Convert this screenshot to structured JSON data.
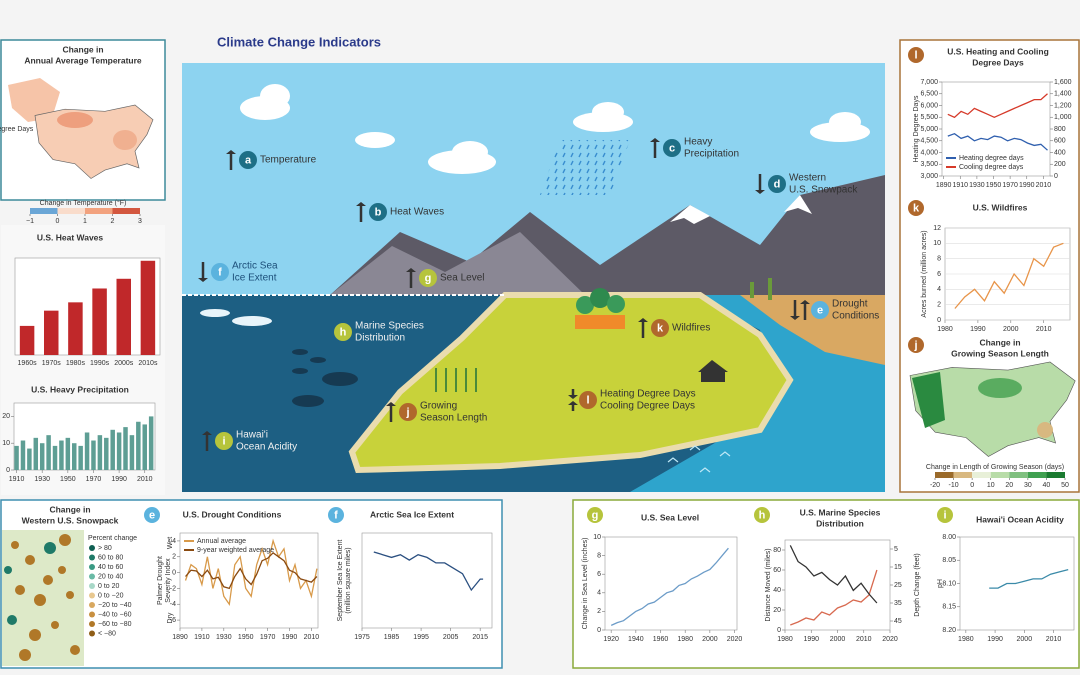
{
  "header": {
    "title": "Climate Change Indicators"
  },
  "indicators": [
    {
      "letter": "a",
      "lines": [
        "Temperature"
      ],
      "trend": "up",
      "color": "#1e6f86"
    },
    {
      "letter": "b",
      "lines": [
        "Heat Waves"
      ],
      "trend": "up",
      "color": "#1e6f86"
    },
    {
      "letter": "c",
      "lines": [
        "Heavy",
        "Precipitation"
      ],
      "trend": "up",
      "color": "#1e6f86"
    },
    {
      "letter": "d",
      "lines": [
        "Western",
        "U.S. Snowpack"
      ],
      "trend": "down",
      "color": "#1e6f86"
    },
    {
      "letter": "e",
      "lines": [
        "Drought",
        "Conditions"
      ],
      "trend": "mixed",
      "color": "#5bb3de"
    },
    {
      "letter": "f",
      "lines": [
        "Arctic Sea",
        "Ice Extent"
      ],
      "trend": "down",
      "color": "#5bb3de"
    },
    {
      "letter": "g",
      "lines": [
        "Sea Level"
      ],
      "trend": "up",
      "color": "#b6c43c"
    },
    {
      "letter": "h",
      "lines": [
        "Marine Species",
        "Distribution"
      ],
      "color": "#b6c43c"
    },
    {
      "letter": "i",
      "lines": [
        "Hawai'i",
        "Ocean Acidity"
      ],
      "trend": "up",
      "color": "#b6c43c"
    },
    {
      "letter": "j",
      "lines": [
        "Growing",
        "Season Length"
      ],
      "trend": "up",
      "color": "#b0682c"
    },
    {
      "letter": "k",
      "lines": [
        "Wildfires"
      ],
      "trend": "up",
      "color": "#b0682c"
    },
    {
      "letter": "l",
      "lines": [
        "Heating Degree Days",
        "Cooling Degree Days"
      ],
      "trend": [
        "down",
        "up"
      ],
      "color": "#b0682c"
    }
  ],
  "panels": [
    {
      "type": "map",
      "title": [
        "Change in",
        "Annual Average Temperature"
      ],
      "legend_title": "Change in Temperature (°F)",
      "legend_ticks": [
        {
          "value": -1,
          "label": "−1"
        },
        0,
        1,
        2,
        3
      ],
      "legend_colors": [
        "#6aa6d6",
        "#f9dccb",
        "#f2a27e",
        "#d3573f"
      ]
    },
    {
      "type": "bar",
      "title": [
        "U.S. Heat Waves"
      ],
      "categories": [
        "1960s",
        "1970s",
        "1980s",
        "1990s",
        "2000s",
        "2010s"
      ],
      "values": [
        21,
        32,
        38,
        48,
        55,
        68
      ],
      "ylim": [
        0,
        70
      ],
      "color": "#c0282a"
    },
    {
      "type": "bar",
      "title": [
        "U.S. Heavy Precipitation"
      ],
      "x": [
        1910,
        1915,
        1920,
        1925,
        1930,
        1935,
        1940,
        1945,
        1950,
        1955,
        1960,
        1965,
        1970,
        1975,
        1980,
        1985,
        1990,
        1995,
        2000,
        2005,
        2010,
        2015
      ],
      "values": [
        9,
        11,
        8,
        12,
        10,
        13,
        9,
        11,
        12,
        10,
        9,
        14,
        11,
        13,
        12,
        15,
        14,
        16,
        13,
        18,
        17,
        20
      ],
      "xlim": [
        1908,
        2018
      ],
      "ylim": [
        0,
        25
      ],
      "xticks": [
        1910,
        1930,
        1950,
        1970,
        1990,
        2010
      ],
      "yticks": [
        0,
        10,
        20
      ],
      "color": "#5e9e94"
    },
    {
      "type": "map",
      "title": [
        "Change in",
        "Western U.S. Snowpack"
      ],
      "legend_title": "Percent change",
      "legend_items": [
        "> 80",
        "60 to 80",
        "40 to 60",
        "20 to 40",
        "0 to 20",
        "0 to −20",
        "−20 to −40",
        "−40 to −60",
        "−60 to −80",
        "< −80"
      ],
      "legend_colors": [
        "#0f5f52",
        "#1f7a68",
        "#3a9a84",
        "#6abaa6",
        "#a8d8c8",
        "#e8c890",
        "#d8a860",
        "#c89040",
        "#b07828",
        "#8f5e18"
      ]
    },
    {
      "type": "line",
      "letter": "e",
      "color": "#5bb3de",
      "title": [
        "U.S. Drought Conditions"
      ],
      "ylabel": [
        "Palmer Drought",
        "Severity Index"
      ],
      "annotations": [
        "Wet",
        "Dry"
      ],
      "x": [
        1895,
        1900,
        1905,
        1910,
        1915,
        1920,
        1925,
        1930,
        1935,
        1940,
        1945,
        1950,
        1955,
        1960,
        1965,
        1970,
        1975,
        1980,
        1985,
        1990,
        1995,
        2000,
        2005,
        2010,
        2015
      ],
      "series": [
        {
          "name": "Annual average",
          "color": "#d89a4a",
          "values": [
            -1,
            1,
            0.5,
            -1.5,
            2,
            -2,
            0.5,
            -3,
            -4,
            1,
            2,
            -2,
            -3,
            1,
            3,
            1,
            4,
            2,
            3,
            -1,
            1,
            -2,
            -1,
            -3,
            0.5
          ]
        },
        {
          "name": "9-year weighted average",
          "color": "#8a4a10",
          "values": [
            -0.5,
            0.3,
            0.2,
            -0.5,
            0.3,
            -0.8,
            -0.6,
            -1.8,
            -2,
            -0.5,
            0.5,
            -0.8,
            -1.5,
            -0.2,
            1.5,
            1.8,
            2.5,
            2,
            1.5,
            0.3,
            0,
            -0.8,
            -1,
            -1.2,
            -0.5
          ]
        }
      ],
      "xlim": [
        1890,
        2016
      ],
      "ylim": [
        -7,
        5
      ],
      "xticks": [
        1890,
        1910,
        1930,
        1950,
        1970,
        1990,
        2010
      ],
      "yticks": [
        -6,
        -4,
        -2,
        0,
        2,
        4
      ],
      "legend": true
    },
    {
      "type": "line",
      "letter": "f",
      "color": "#5bb3de",
      "title": [
        "Arctic Sea Ice Extent"
      ],
      "ylabel": [
        "September Sea Ice Extent",
        "(million square miles)"
      ],
      "x": [
        1979,
        1982,
        1985,
        1988,
        1991,
        1994,
        1997,
        2000,
        2003,
        2006,
        2009,
        2012,
        2015,
        2016
      ],
      "series": [
        {
          "color": "#2a4f80",
          "values": [
            2.8,
            2.7,
            2.6,
            2.7,
            2.5,
            2.7,
            2.6,
            2.4,
            2.4,
            2.2,
            2.0,
            1.4,
            1.8,
            1.8
          ]
        }
      ],
      "xlim": [
        1975,
        2019
      ],
      "ylim": [
        0,
        3.5
      ],
      "xticks": [
        1975,
        1985,
        1995,
        2005,
        2015
      ]
    },
    {
      "type": "line",
      "letter": "g",
      "color": "#b6c43c",
      "title": [
        "U.S. Sea Level"
      ],
      "ylabel": [
        "Change in Sea Level (inches)"
      ],
      "x": [
        1920,
        1925,
        1930,
        1935,
        1940,
        1945,
        1950,
        1955,
        1960,
        1965,
        1970,
        1975,
        1980,
        1985,
        1990,
        1995,
        2000,
        2005,
        2010,
        2015
      ],
      "series": [
        {
          "color": "#6c9cc8",
          "values": [
            0.5,
            0.8,
            1,
            1.5,
            2,
            2.3,
            2.8,
            3,
            3.5,
            4,
            4.2,
            4.8,
            5,
            5.5,
            5.8,
            6.2,
            6.5,
            7.2,
            8,
            8.8
          ]
        }
      ],
      "xlim": [
        1915,
        2022
      ],
      "ylim": [
        0,
        10
      ],
      "xticks": [
        1920,
        1940,
        1960,
        1980,
        2000,
        2020
      ],
      "yticks": [
        0,
        2,
        4,
        6,
        8,
        10
      ]
    },
    {
      "type": "line",
      "letter": "h",
      "color": "#b6c43c",
      "title": [
        "U.S. Marine Species",
        "Distribution"
      ],
      "ylabel": [
        "Distance Moved (miles)"
      ],
      "y2label": [
        "Depth Change (feet)"
      ],
      "x": [
        1982,
        1985,
        1988,
        1991,
        1994,
        1997,
        2000,
        2003,
        2006,
        2009,
        2012,
        2015
      ],
      "series": [
        {
          "color": "#d86a50",
          "values": [
            5,
            8,
            12,
            10,
            18,
            15,
            22,
            25,
            30,
            28,
            35,
            60
          ]
        },
        {
          "color": "#333333",
          "axis": "y2",
          "values": [
            3,
            12,
            15,
            20,
            18,
            22,
            25,
            20,
            28,
            24,
            30,
            35
          ]
        }
      ],
      "xlim": [
        1980,
        2020
      ],
      "ylim": [
        0,
        90
      ],
      "y2lim": [
        50,
        0
      ],
      "xticks": [
        1980,
        1990,
        2000,
        2010,
        2020
      ],
      "yticks": [
        0,
        20,
        40,
        60,
        80
      ],
      "y2ticks": [
        5,
        15,
        25,
        35,
        45
      ]
    },
    {
      "type": "line",
      "letter": "i",
      "color": "#b6c43c",
      "title": [
        "Hawai'i Ocean Acidity"
      ],
      "ylabel": [
        "pH"
      ],
      "x": [
        1988,
        1991,
        1994,
        1997,
        2000,
        2003,
        2006,
        2009,
        2012,
        2015
      ],
      "series": [
        {
          "color": "#3a8aa8",
          "values": [
            8.11,
            8.11,
            8.1,
            8.1,
            8.095,
            8.09,
            8.09,
            8.08,
            8.075,
            8.07
          ]
        }
      ],
      "xlim": [
        1978,
        2017
      ],
      "ylim": [
        8.2,
        8.0
      ],
      "xticks": [
        1980,
        1990,
        2000,
        2010
      ],
      "yticks": [
        {
          "value": 8.0,
          "label": "8.00"
        },
        8.05,
        {
          "value": 8.1,
          "label": "8.10"
        },
        8.15,
        {
          "value": 8.2,
          "label": "8.20"
        }
      ]
    },
    {
      "type": "line",
      "letter": "l",
      "color": "#b0682c",
      "title": [
        "U.S. Heating and Cooling",
        "Degree Days"
      ],
      "ylabel": [
        "Heating Degree Days"
      ],
      "y2label": [
        "Cooling Degree Days"
      ],
      "x": [
        1895,
        1903,
        1911,
        1919,
        1927,
        1935,
        1943,
        1951,
        1959,
        1967,
        1975,
        1983,
        1991,
        1999,
        2007,
        2015
      ],
      "series": [
        {
          "name": "Heating degree days",
          "color": "#2f5fae",
          "values": [
            4700,
            4800,
            4600,
            4700,
            4500,
            4600,
            4550,
            4700,
            4650,
            4500,
            4600,
            4550,
            4400,
            4300,
            4350,
            4100
          ]
        },
        {
          "name": "Cooling degree days",
          "color": "#d63a2a",
          "axis": "y2",
          "values": [
            1050,
            1000,
            1100,
            1050,
            1150,
            1100,
            1050,
            1000,
            1050,
            1100,
            1150,
            1200,
            1250,
            1300,
            1300,
            1400
          ]
        }
      ],
      "xlim": [
        1888,
        2018
      ],
      "ylim": [
        3000,
        7000
      ],
      "y2lim": [
        0,
        1600
      ],
      "xticks": [
        1890,
        1910,
        1930,
        1950,
        1970,
        1990,
        2010
      ],
      "yticks": [
        {
          "value": 3000,
          "label": "3,000"
        },
        {
          "value": 3500,
          "label": "3,500"
        },
        {
          "value": 4000,
          "label": "4,000"
        },
        {
          "value": 4500,
          "label": "4,500"
        },
        {
          "value": 5000,
          "label": "5,000"
        },
        {
          "value": 5500,
          "label": "5,500"
        },
        {
          "value": 6000,
          "label": "6,000"
        },
        {
          "value": 6500,
          "label": "6,500"
        },
        {
          "value": 7000,
          "label": "7,000"
        }
      ],
      "y2ticks": [
        0,
        200,
        400,
        600,
        800,
        {
          "value": 1000,
          "label": "1,000"
        },
        {
          "value": 1200,
          "label": "1,200"
        },
        {
          "value": 1400,
          "label": "1,400"
        },
        {
          "value": 1600,
          "label": "1,600"
        }
      ],
      "legend": true
    },
    {
      "type": "line",
      "letter": "k",
      "color": "#b0682c",
      "title": [
        "U.S. Wildfires"
      ],
      "ylabel": [
        "Acres burned (million acres)"
      ],
      "x": [
        1983,
        1986,
        1989,
        1992,
        1995,
        1998,
        2001,
        2004,
        2007,
        2010,
        2013,
        2016
      ],
      "series": [
        {
          "color": "#e8954a",
          "values": [
            1.5,
            3,
            4,
            2.5,
            5,
            3.5,
            6,
            4.5,
            8,
            7,
            9.5,
            10
          ]
        }
      ],
      "xlim": [
        1980,
        2018
      ],
      "ylim": [
        0,
        12
      ],
      "xticks": [
        1980,
        1990,
        2000,
        2010
      ],
      "yticks": [
        0,
        2,
        4,
        6,
        8,
        10,
        12
      ],
      "grid": true
    },
    {
      "type": "map",
      "letter": "j",
      "color": "#b0682c",
      "title": [
        "Change in",
        "Growing Season Length"
      ],
      "legend_title": "Change in Length of Growing Season (days)",
      "legend_ticks": [
        -20,
        -10,
        0,
        10,
        20,
        30,
        40,
        50
      ],
      "legend_colors": [
        "#9a6a2a",
        "#d8b880",
        "#e8f0d8",
        "#b8dca8",
        "#80c080",
        "#40a050",
        "#1a7a30"
      ]
    }
  ]
}
